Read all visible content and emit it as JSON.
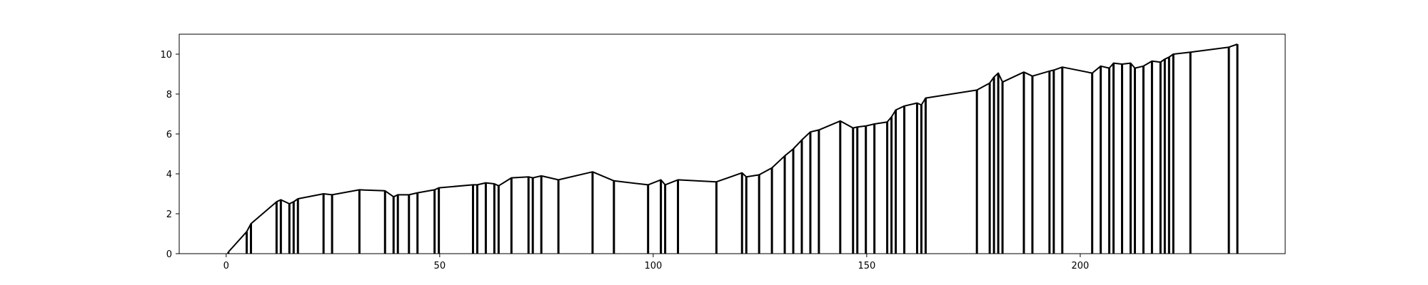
{
  "chart_data": {
    "type": "line",
    "title": "",
    "xlabel": "",
    "ylabel": "",
    "xlim": [
      -11,
      248
    ],
    "ylim": [
      0,
      11
    ],
    "xticks": [
      0,
      50,
      100,
      150,
      200
    ],
    "yticks": [
      0,
      2,
      4,
      6,
      8,
      10
    ],
    "grid": false,
    "legend": "none",
    "line_color": "#000000",
    "series": [
      {
        "x": [
          0.5,
          4.8,
          5.8,
          11.8,
          12.8,
          14.8,
          15.8,
          16.8,
          22.8,
          24.8,
          31.2,
          37.2,
          39.2,
          40.2,
          42.8,
          44.8,
          48.8,
          49.8,
          57.8,
          58.8,
          60.8,
          62.8,
          63.8,
          66.8,
          70.8,
          71.8,
          73.8,
          77.8,
          85.8,
          90.8,
          98.8,
          101.8,
          102.8,
          105.8,
          114.8,
          120.8,
          121.8,
          124.8,
          127.8,
          130.8,
          132.8,
          134.8,
          136.8,
          138.8,
          143.8,
          146.8,
          147.8,
          149.8,
          151.8,
          154.8,
          155.8,
          156.8,
          158.8,
          161.8,
          162.8,
          163.8,
          175.8,
          178.8,
          179.8,
          180.8,
          181.8,
          186.8,
          188.8,
          192.8,
          193.8,
          195.8,
          202.8,
          204.8,
          206.8,
          207.8,
          209.8,
          211.8,
          212.8,
          214.8,
          216.8,
          218.8,
          219.8,
          220.8,
          221.8,
          225.8,
          234.8,
          236.8
        ],
        "y": [
          0.08,
          1.1,
          1.5,
          2.6,
          2.7,
          2.5,
          2.6,
          2.75,
          3.0,
          2.95,
          3.2,
          3.15,
          2.85,
          2.95,
          2.95,
          3.05,
          3.2,
          3.3,
          3.45,
          3.45,
          3.55,
          3.5,
          3.4,
          3.8,
          3.85,
          3.8,
          3.9,
          3.7,
          4.1,
          3.65,
          3.45,
          3.7,
          3.45,
          3.7,
          3.6,
          4.05,
          3.85,
          3.95,
          4.3,
          4.9,
          5.25,
          5.7,
          6.1,
          6.2,
          6.65,
          6.3,
          6.35,
          6.4,
          6.5,
          6.6,
          6.85,
          7.2,
          7.4,
          7.55,
          7.45,
          7.8,
          8.2,
          8.55,
          8.85,
          9.05,
          8.6,
          9.1,
          8.9,
          9.15,
          9.2,
          9.35,
          9.05,
          9.4,
          9.3,
          9.55,
          9.5,
          9.55,
          9.3,
          9.4,
          9.65,
          9.6,
          9.75,
          9.85,
          10.0,
          10.1,
          10.35,
          10.5
        ]
      }
    ]
  }
}
